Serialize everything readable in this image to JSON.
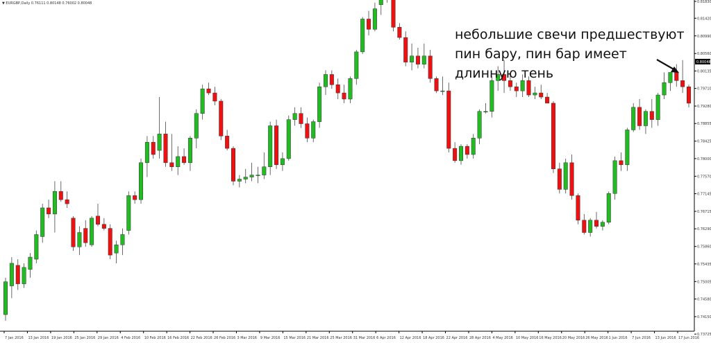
{
  "header": {
    "symbol_info": "▼ EURGBP,Daily   0.76111 0.80148 0.76002 0.80048"
  },
  "annotation": {
    "lines": [
      "небольшие свечи предшествуют",
      "пин бару, пин бар имеет",
      "длинную тень"
    ]
  },
  "colors": {
    "bull": "#22bb22",
    "bear": "#ee1111",
    "axis": "#000000",
    "price_tag_bg": "#000000"
  },
  "chart_data": {
    "type": "candlestick",
    "symbol": "EURGBP",
    "timeframe": "Daily",
    "ylim": [
      0.73795,
      0.8183
    ],
    "yticks": [
      0.8183,
      0.8142,
      0.8099,
      0.8056,
      0.80135,
      0.7971,
      0.7928,
      0.78855,
      0.78425,
      0.78,
      0.7757,
      0.77145,
      0.76715,
      0.7629,
      0.7586,
      0.75435,
      0.75005,
      0.7458,
      0.7415,
      0.73725
    ],
    "yticks_labels": [
      "0.81830",
      "0.81420",
      "0.80990",
      "0.80560",
      "0.80135",
      "0.79710",
      "0.79280",
      "0.78855",
      "0.78425",
      "0.78000",
      "0.77570",
      "0.77145",
      "0.76715",
      "0.76290",
      "0.75860",
      "0.75435",
      "0.75005",
      "0.74580",
      "0.74150",
      "0.73725"
    ],
    "current_price": "0.80048",
    "xticks": [
      "7 Jan 2016",
      "13 Jan 2016",
      "19 Jan 2016",
      "25 Jan 2016",
      "29 Jan 2016",
      "4 Feb 2016",
      "10 Feb 2016",
      "16 Feb 2016",
      "22 Feb 2016",
      "26 Feb 2016",
      "3 Mar 2016",
      "9 Mar 2016",
      "15 Mar 2016",
      "21 Mar 2016",
      "25 Mar 2016",
      "31 Mar 2016",
      "6 Apr 2016",
      "12 Apr 2016",
      "18 Apr 2016",
      "22 Apr 2016",
      "28 Apr 2016",
      "4 May 2016",
      "10 May 2016",
      "16 May 2016",
      "20 May 2016",
      "26 May 2016",
      "1 Jun 2016",
      "7 Jun 2016",
      "13 Jun 2016",
      "17 Jun 2016"
    ],
    "candles": [
      [
        0.742,
        0.751,
        0.7405,
        0.75
      ],
      [
        0.749,
        0.756,
        0.746,
        0.7545
      ],
      [
        0.754,
        0.7555,
        0.748,
        0.7495
      ],
      [
        0.7495,
        0.7545,
        0.7485,
        0.7535
      ],
      [
        0.753,
        0.757,
        0.751,
        0.756
      ],
      [
        0.7555,
        0.7625,
        0.7545,
        0.7615
      ],
      [
        0.761,
        0.769,
        0.7595,
        0.768
      ],
      [
        0.768,
        0.77,
        0.7655,
        0.7665
      ],
      [
        0.7665,
        0.7745,
        0.762,
        0.772
      ],
      [
        0.772,
        0.7745,
        0.7695,
        0.77
      ],
      [
        0.77,
        0.772,
        0.768,
        0.769
      ],
      [
        0.7655,
        0.766,
        0.7575,
        0.7585
      ],
      [
        0.7585,
        0.7635,
        0.7565,
        0.762
      ],
      [
        0.763,
        0.765,
        0.7585,
        0.7595
      ],
      [
        0.759,
        0.766,
        0.7585,
        0.7655
      ],
      [
        0.766,
        0.769,
        0.7635,
        0.764
      ],
      [
        0.764,
        0.7655,
        0.7625,
        0.763
      ],
      [
        0.763,
        0.764,
        0.7555,
        0.7565
      ],
      [
        0.757,
        0.76,
        0.7545,
        0.759
      ],
      [
        0.759,
        0.763,
        0.7565,
        0.7615
      ],
      [
        0.7625,
        0.772,
        0.7615,
        0.771
      ],
      [
        0.771,
        0.772,
        0.769,
        0.77
      ],
      [
        0.77,
        0.78,
        0.769,
        0.779
      ],
      [
        0.779,
        0.7855,
        0.7755,
        0.784
      ],
      [
        0.784,
        0.7855,
        0.78,
        0.781
      ],
      [
        0.782,
        0.795,
        0.78,
        0.786
      ],
      [
        0.786,
        0.789,
        0.778,
        0.779
      ],
      [
        0.779,
        0.786,
        0.777,
        0.778
      ],
      [
        0.778,
        0.783,
        0.776,
        0.7805
      ],
      [
        0.7805,
        0.7825,
        0.7785,
        0.779
      ],
      [
        0.779,
        0.7855,
        0.777,
        0.785
      ],
      [
        0.785,
        0.792,
        0.7825,
        0.791
      ],
      [
        0.791,
        0.798,
        0.7895,
        0.797
      ],
      [
        0.797,
        0.7985,
        0.7955,
        0.796
      ],
      [
        0.796,
        0.7975,
        0.793,
        0.794
      ],
      [
        0.794,
        0.7945,
        0.7845,
        0.7855
      ],
      [
        0.7855,
        0.787,
        0.782,
        0.7825
      ],
      [
        0.7825,
        0.783,
        0.7735,
        0.7745
      ],
      [
        0.7745,
        0.776,
        0.773,
        0.775
      ],
      [
        0.775,
        0.7775,
        0.774,
        0.7755
      ],
      [
        0.7755,
        0.779,
        0.7745,
        0.776
      ],
      [
        0.776,
        0.778,
        0.774,
        0.776
      ],
      [
        0.776,
        0.7815,
        0.775,
        0.778
      ],
      [
        0.778,
        0.789,
        0.776,
        0.788
      ],
      [
        0.788,
        0.7895,
        0.7775,
        0.7785
      ],
      [
        0.7785,
        0.7815,
        0.777,
        0.78
      ],
      [
        0.78,
        0.7905,
        0.7795,
        0.7895
      ],
      [
        0.7895,
        0.7925,
        0.788,
        0.791
      ],
      [
        0.791,
        0.7925,
        0.7875,
        0.7885
      ],
      [
        0.7885,
        0.79,
        0.784,
        0.785
      ],
      [
        0.785,
        0.7895,
        0.784,
        0.789
      ],
      [
        0.789,
        0.7985,
        0.7875,
        0.7975
      ],
      [
        0.7975,
        0.8015,
        0.7955,
        0.8005
      ],
      [
        0.8005,
        0.8015,
        0.797,
        0.798
      ],
      [
        0.798,
        0.7995,
        0.7945,
        0.796
      ],
      [
        0.796,
        0.798,
        0.7935,
        0.7945
      ],
      [
        0.7945,
        0.8,
        0.7935,
        0.7995
      ],
      [
        0.7995,
        0.8065,
        0.798,
        0.806
      ],
      [
        0.806,
        0.8145,
        0.8055,
        0.814
      ],
      [
        0.814,
        0.816,
        0.81,
        0.8115
      ],
      [
        0.8115,
        0.818,
        0.811,
        0.8165
      ],
      [
        0.8175,
        0.8205,
        0.815,
        0.8205
      ],
      [
        0.8205,
        0.8215,
        0.818,
        0.819
      ],
      [
        0.82,
        0.82,
        0.811,
        0.812
      ],
      [
        0.812,
        0.813,
        0.809,
        0.8095
      ],
      [
        0.8095,
        0.811,
        0.8025,
        0.8035
      ],
      [
        0.8035,
        0.808,
        0.8015,
        0.805
      ],
      [
        0.805,
        0.807,
        0.802,
        0.803
      ],
      [
        0.803,
        0.808,
        0.802,
        0.805
      ],
      [
        0.805,
        0.8065,
        0.7985,
        0.7995
      ],
      [
        0.7995,
        0.8,
        0.796,
        0.7965
      ],
      [
        0.7965,
        0.8,
        0.7955,
        0.7965
      ],
      [
        0.7965,
        0.7985,
        0.7815,
        0.7825
      ],
      [
        0.7825,
        0.784,
        0.779,
        0.7795
      ],
      [
        0.7795,
        0.7835,
        0.7785,
        0.783
      ],
      [
        0.783,
        0.7835,
        0.78,
        0.781
      ],
      [
        0.781,
        0.786,
        0.78,
        0.785
      ],
      [
        0.785,
        0.792,
        0.7835,
        0.7915
      ],
      [
        0.7915,
        0.7935,
        0.791,
        0.7915
      ],
      [
        0.7915,
        0.8,
        0.79,
        0.799
      ],
      [
        0.799,
        0.8025,
        0.7965,
        0.8005
      ],
      [
        0.8005,
        0.804,
        0.796,
        0.799
      ],
      [
        0.799,
        0.8005,
        0.7965,
        0.7975
      ],
      [
        0.7975,
        0.7985,
        0.795,
        0.7965
      ],
      [
        0.7965,
        0.8005,
        0.795,
        0.799
      ],
      [
        0.799,
        0.8,
        0.795,
        0.7955
      ],
      [
        0.7955,
        0.7975,
        0.7945,
        0.796
      ],
      [
        0.796,
        0.798,
        0.7945,
        0.795
      ],
      [
        0.795,
        0.796,
        0.7935,
        0.7935
      ],
      [
        0.7935,
        0.794,
        0.7765,
        0.7775
      ],
      [
        0.7775,
        0.779,
        0.7715,
        0.7725
      ],
      [
        0.7725,
        0.78,
        0.7715,
        0.779
      ],
      [
        0.779,
        0.781,
        0.77,
        0.771
      ],
      [
        0.771,
        0.7715,
        0.764,
        0.765
      ],
      [
        0.765,
        0.7665,
        0.7615,
        0.762
      ],
      [
        0.762,
        0.7655,
        0.761,
        0.765
      ],
      [
        0.765,
        0.767,
        0.763,
        0.7635
      ],
      [
        0.7635,
        0.765,
        0.7625,
        0.7645
      ],
      [
        0.7645,
        0.772,
        0.764,
        0.7715
      ],
      [
        0.7715,
        0.7805,
        0.77,
        0.7795
      ],
      [
        0.7795,
        0.7815,
        0.777,
        0.7785
      ],
      [
        0.7785,
        0.7875,
        0.777,
        0.787
      ],
      [
        0.787,
        0.7935,
        0.7865,
        0.7925
      ],
      [
        0.7925,
        0.7945,
        0.787,
        0.788
      ],
      [
        0.788,
        0.792,
        0.786,
        0.7915
      ],
      [
        0.7915,
        0.7945,
        0.7875,
        0.7895
      ],
      [
        0.7895,
        0.796,
        0.788,
        0.7955
      ],
      [
        0.7955,
        0.801,
        0.7945,
        0.7985
      ],
      [
        0.7985,
        0.8005,
        0.7965,
        0.801
      ],
      [
        0.801,
        0.803,
        0.7975,
        0.799
      ],
      [
        0.799,
        0.804,
        0.796,
        0.7975
      ],
      [
        0.7975,
        0.798,
        0.7925,
        0.7935
      ]
    ]
  }
}
